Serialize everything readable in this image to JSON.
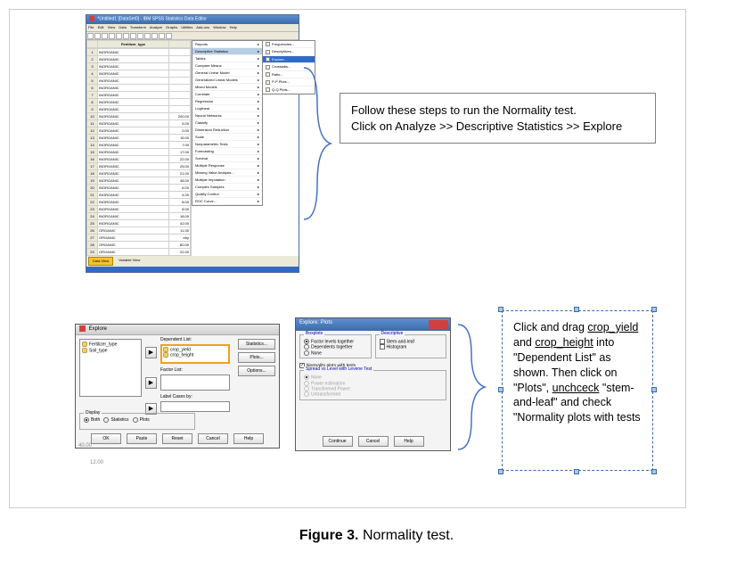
{
  "spss": {
    "title": "*Untitled1 [DataSet0] - IBM SPSS Statistics Data Editor",
    "menus": [
      "File",
      "Edit",
      "View",
      "Data",
      "Transform",
      "Analyze",
      "Graphs",
      "Utilities",
      "Add-ons",
      "Window",
      "Help"
    ],
    "col1_header": "Fertilizer_type",
    "rows": [
      {
        "n": "1",
        "f": "INORGANIC",
        "v": ""
      },
      {
        "n": "2",
        "f": "INORGANIC",
        "v": ""
      },
      {
        "n": "3",
        "f": "INORGANIC",
        "v": ""
      },
      {
        "n": "4",
        "f": "INORGANIC",
        "v": ""
      },
      {
        "n": "5",
        "f": "INORGANIC",
        "v": ""
      },
      {
        "n": "6",
        "f": "INORGANIC",
        "v": ""
      },
      {
        "n": "7",
        "f": "INORGANIC",
        "v": ""
      },
      {
        "n": "8",
        "f": "INORGANIC",
        "v": ""
      },
      {
        "n": "9",
        "f": "INORGANIC",
        "v": ""
      },
      {
        "n": "10",
        "f": "INORGANIC",
        "v": "200.00"
      },
      {
        "n": "11",
        "f": "INORGANIC",
        "v": "5.00"
      },
      {
        "n": "12",
        "f": "INORGANIC",
        "v": "0.00"
      },
      {
        "n": "13",
        "f": "INORGANIC",
        "v": "15.00"
      },
      {
        "n": "14",
        "f": "INORGANIC",
        "v": "7.00"
      },
      {
        "n": "15",
        "f": "INORGANIC",
        "v": "17.00"
      },
      {
        "n": "16",
        "f": "INORGANIC",
        "v": "22.00"
      },
      {
        "n": "17",
        "f": "INORGANIC",
        "v": "25.00"
      },
      {
        "n": "18",
        "f": "INORGANIC",
        "v": "21.00"
      },
      {
        "n": "19",
        "f": "INORGANIC",
        "v": "48.00"
      },
      {
        "n": "20",
        "f": "INORGANIC",
        "v": "6.00"
      },
      {
        "n": "21",
        "f": "INORGANIC",
        "v": "4.00"
      },
      {
        "n": "22",
        "f": "INORGANIC",
        "v": "8.00"
      },
      {
        "n": "23",
        "f": "INORGANIC",
        "v": "8.00"
      },
      {
        "n": "24",
        "f": "INORGANIC",
        "v": "18.00"
      },
      {
        "n": "25",
        "f": "INORGANIC",
        "v": "42.00"
      },
      {
        "n": "26",
        "f": "ORGANIC",
        "v": "11.00"
      },
      {
        "n": "27",
        "f": "ORGANIC",
        "v": "eby"
      },
      {
        "n": "28",
        "f": "ORGANIC",
        "v": "80.00"
      },
      {
        "n": "29",
        "f": "ORGANIC",
        "v": "22.00"
      },
      {
        "n": "30",
        "f": "ORGANIC",
        "v": "72.00"
      }
    ],
    "analyze_items": [
      "Reports",
      "Descriptive Statistics",
      "Tables",
      "Compare Means",
      "General Linear Model",
      "Generalized Linear Models",
      "Mixed Models",
      "Correlate",
      "Regression",
      "Loglinear",
      "Neural Networks",
      "Classify",
      "Dimension Reduction",
      "Scale",
      "Nonparametric Tests",
      "Forecasting",
      "Survival",
      "Multiple Response",
      "Missing Value Analysis...",
      "Multiple Imputation",
      "Complex Samples",
      "Quality Control",
      "ROC Curve..."
    ],
    "analyze_hi_index": 1,
    "sub_items": [
      "Frequencies...",
      "Descriptives...",
      "Explore...",
      "Crosstabs...",
      "Ratio...",
      "P-P Plots...",
      "Q-Q Plots..."
    ],
    "sub_hi_index": 2,
    "tabs": {
      "data": "Data View",
      "var": "Variable View"
    }
  },
  "instr1": {
    "line1": "Follow these steps to run the Normality test.",
    "line2": "Click on Analyze >> Descriptive Statistics >> Explore"
  },
  "explore": {
    "title": "Explore",
    "src": [
      "Fertilizer_type",
      "Soil_type"
    ],
    "dep_label": "Dependent List:",
    "dep_items": [
      "crop_yield",
      "crop_height"
    ],
    "factor_label": "Factor List:",
    "label_label": "Label Cases by:",
    "side": {
      "stat": "Statistics...",
      "plots": "Plots...",
      "opts": "Options..."
    },
    "display_legend": "Display",
    "display": {
      "both": "Both",
      "stats": "Statistics",
      "plots": "Plots"
    },
    "btns": {
      "ok": "OK",
      "paste": "Paste",
      "reset": "Reset",
      "cancel": "Cancel",
      "help": "Help"
    }
  },
  "plots": {
    "title": "Explore: Plots",
    "box_legend": "Boxplots",
    "box": {
      "flt": "Factor levels together",
      "dt": "Dependents together",
      "none": "None"
    },
    "desc_legend": "Descriptive",
    "desc": {
      "stem": "Stem-and-leaf",
      "hist": "Histogram"
    },
    "norm": "Normality plots with tests",
    "spread_legend": "Spread vs Level with Levene Test",
    "spread": {
      "none": "None",
      "power": "Power estimation",
      "trans": "Transformed   Power:",
      "untr": "Untransformed"
    },
    "btns": {
      "cont": "Continue",
      "cancel": "Cancel",
      "help": "Help"
    }
  },
  "instr2": {
    "l1": "Click and drag ",
    "u1": "crop_yield",
    "l2": " and ",
    "u2": "crop_height",
    "l3": " into \"Dependent List\" as shown. Then click on \"Plots\", ",
    "u3": "unchceck",
    "l4": " \"stem-and-leaf\" and check \"Normality plots with tests"
  },
  "scale": {
    "y": "40.00",
    "x": "12.00"
  },
  "caption": {
    "fig": "Figure 3.",
    "txt": " Normality test."
  }
}
